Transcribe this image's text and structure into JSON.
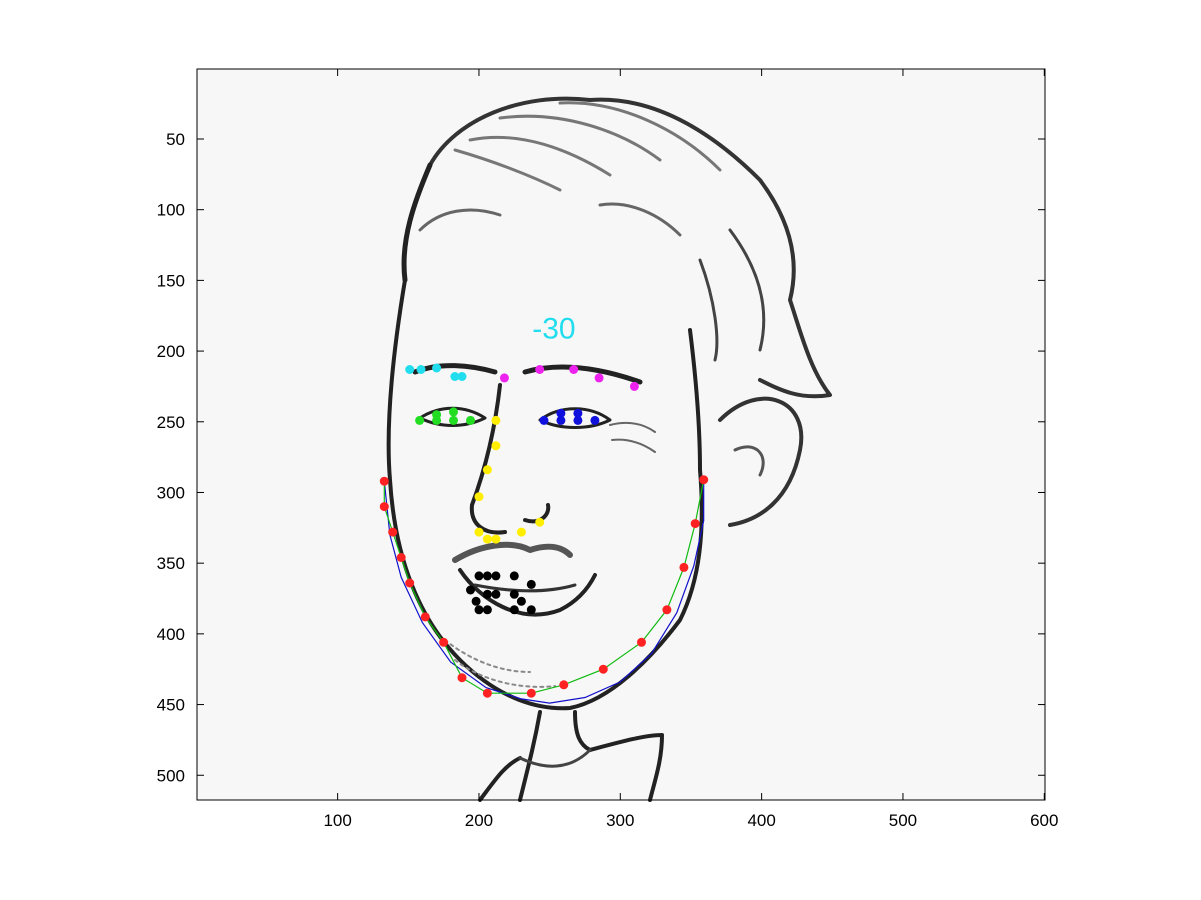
{
  "chart_data": {
    "type": "scatter",
    "title": "",
    "xlabel": "",
    "ylabel": "",
    "xlim": [
      0.5,
      600.5
    ],
    "ylim": [
      0.5,
      517.5
    ],
    "y_reversed": true,
    "grid": false,
    "background_image": "grayscale caricature face drawing",
    "x_ticks": [
      100,
      200,
      300,
      400,
      500,
      600
    ],
    "y_ticks": [
      50,
      100,
      150,
      200,
      250,
      300,
      350,
      400,
      450,
      500
    ],
    "annotations": [
      {
        "text": "-30",
        "x": 253,
        "y": 191,
        "color": "#22ddee"
      }
    ],
    "series": [
      {
        "color": "#ff2222",
        "points": [
          [
            133,
            292
          ],
          [
            133,
            310
          ],
          [
            139,
            328
          ],
          [
            145,
            346
          ],
          [
            151,
            364
          ],
          [
            162,
            388
          ],
          [
            175,
            406
          ],
          [
            188,
            431
          ],
          [
            206,
            442
          ],
          [
            237,
            442
          ],
          [
            260,
            436
          ],
          [
            288,
            425
          ],
          [
            315,
            406
          ],
          [
            333,
            383
          ],
          [
            345,
            353
          ],
          [
            353,
            322
          ],
          [
            359,
            291
          ]
        ]
      },
      {
        "color": "#22ddee",
        "points": [
          [
            151,
            213
          ],
          [
            159,
            213
          ],
          [
            170,
            212
          ],
          [
            183,
            218
          ],
          [
            188,
            218
          ]
        ]
      },
      {
        "color": "#ee22ee",
        "points": [
          [
            218,
            219
          ],
          [
            243,
            213
          ],
          [
            267,
            213
          ],
          [
            285,
            219
          ],
          [
            310,
            225
          ]
        ]
      },
      {
        "color": "#22dd22",
        "points": [
          [
            158,
            249
          ],
          [
            170,
            245
          ],
          [
            170,
            249
          ],
          [
            182,
            243
          ],
          [
            182,
            249
          ],
          [
            194,
            249
          ]
        ]
      },
      {
        "color": "#1111dd",
        "points": [
          [
            246,
            249
          ],
          [
            258,
            244
          ],
          [
            258,
            249
          ],
          [
            270,
            244
          ],
          [
            270,
            249
          ],
          [
            282,
            249
          ]
        ]
      },
      {
        "color": "#ffee00",
        "points": [
          [
            212,
            249
          ],
          [
            212,
            267
          ],
          [
            206,
            284
          ],
          [
            200,
            303
          ],
          [
            200,
            328
          ],
          [
            206,
            333
          ],
          [
            212,
            333
          ],
          [
            230,
            328
          ],
          [
            243,
            321
          ]
        ]
      },
      {
        "color": "#000000",
        "points": [
          [
            200,
            359
          ],
          [
            206,
            359
          ],
          [
            212,
            359
          ],
          [
            225,
            359
          ],
          [
            194,
            369
          ],
          [
            206,
            372
          ],
          [
            212,
            372
          ],
          [
            225,
            372
          ],
          [
            237,
            365
          ],
          [
            198,
            377
          ],
          [
            230,
            377
          ],
          [
            200,
            383
          ],
          [
            206,
            383
          ],
          [
            225,
            383
          ],
          [
            237,
            383
          ]
        ]
      }
    ],
    "curves": [
      {
        "color": "#1111cc",
        "points": [
          [
            133,
            292
          ],
          [
            137,
            330
          ],
          [
            145,
            360
          ],
          [
            160,
            392
          ],
          [
            180,
            420
          ],
          [
            205,
            438
          ],
          [
            230,
            446
          ],
          [
            250,
            449
          ],
          [
            275,
            445
          ],
          [
            300,
            434
          ],
          [
            322,
            414
          ],
          [
            340,
            385
          ],
          [
            352,
            352
          ],
          [
            359,
            320
          ],
          [
            359,
            291
          ]
        ]
      },
      {
        "color": "#11bb11",
        "points": [
          [
            133,
            292
          ],
          [
            133,
            310
          ],
          [
            139,
            328
          ],
          [
            145,
            346
          ],
          [
            151,
            364
          ],
          [
            162,
            388
          ],
          [
            175,
            406
          ],
          [
            188,
            431
          ],
          [
            206,
            442
          ],
          [
            237,
            442
          ],
          [
            260,
            436
          ],
          [
            288,
            425
          ],
          [
            315,
            406
          ],
          [
            333,
            383
          ],
          [
            345,
            353
          ],
          [
            353,
            322
          ],
          [
            359,
            291
          ]
        ]
      }
    ]
  }
}
